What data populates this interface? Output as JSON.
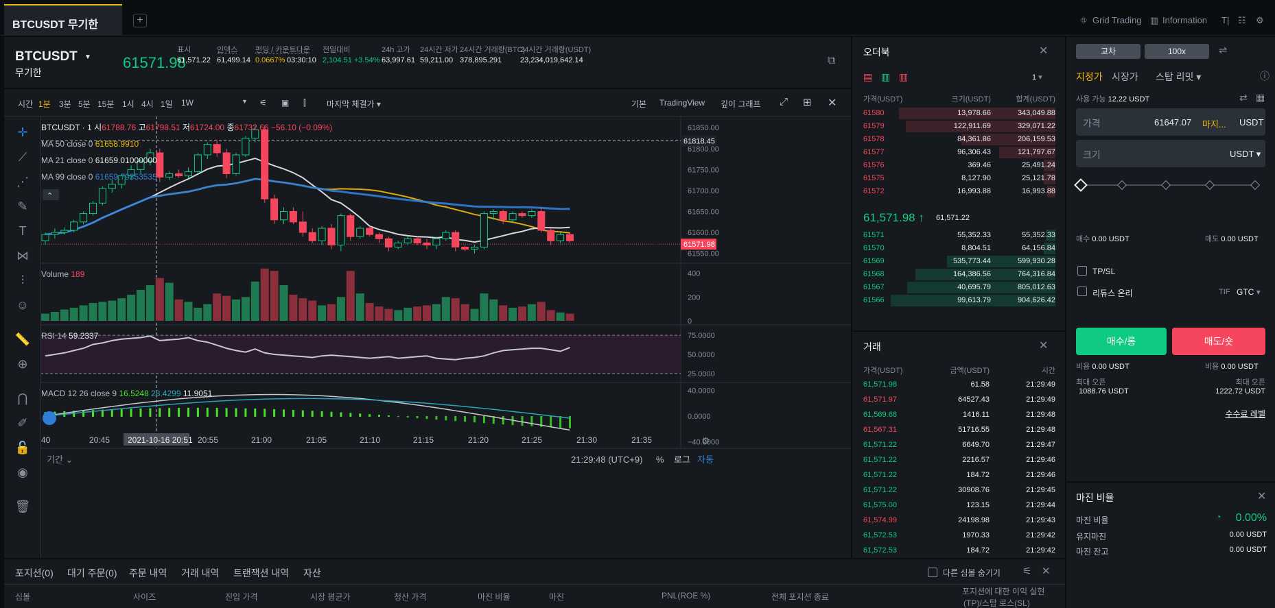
{
  "tab": {
    "title": "BTCUSDT 무기한",
    "add": "+"
  },
  "top_tools": {
    "grid": "Grid Trading",
    "info": "Information"
  },
  "symbol": {
    "name": "BTCUSDT",
    "sub": "무기한",
    "price": "61571.98",
    "stats": [
      {
        "label": "표시",
        "value": "61,571.22",
        "color": "#eaecef"
      },
      {
        "label": "인덱스",
        "value": "61,499.14",
        "color": "#eaecef"
      },
      {
        "label": "펀딩 / 카운트다운",
        "value": "0.0667%",
        "value2": "03:30:10",
        "color": "#f0b90b"
      },
      {
        "label": "전일대비",
        "value": "2,104.51 +3.54%",
        "color": "#0ecb81"
      },
      {
        "label": "24h 고가",
        "value": "63,997.61",
        "color": "#eaecef"
      },
      {
        "label": "24시간 저가",
        "value": "59,211.00",
        "color": "#eaecef"
      },
      {
        "label": "24시간 거래량(BTC)",
        "value": "378,895.291",
        "color": "#eaecef"
      },
      {
        "label": "24시간 거래량(USDT)",
        "value": "23,234,019,642.14",
        "color": "#eaecef"
      }
    ]
  },
  "intervals": {
    "label": "시간",
    "items": [
      "1분",
      "3분",
      "5분",
      "15분",
      "1시",
      "4시",
      "1일",
      "1W"
    ],
    "active": "1분",
    "price_type": "마지막 체결가",
    "views": [
      "기본",
      "TradingView",
      "깊이 그래프"
    ]
  },
  "chart_data": {
    "type": "candlestick",
    "title": "BTCUSDT · 1",
    "ohlc": {
      "o_label": "시",
      "o": "61788.76",
      "h_label": "고",
      "h": "61798.51",
      "l_label": "저",
      "l": "61724.00",
      "c_label": "종",
      "c": "61732.66",
      "chg": "−56.10 (−0.09%)"
    },
    "ma": [
      {
        "label": "MA 50 close 0",
        "value": "61658.9910",
        "color": "#f0b90b"
      },
      {
        "label": "MA 21 close 0",
        "value": "61659.01000000",
        "color": "#eaecef"
      },
      {
        "label": "MA 99 close 0",
        "value": "61659.79353535",
        "color": "#2f7ed8"
      }
    ],
    "price_axis": [
      "61850.00",
      "61800.00",
      "61750.00",
      "61700.00",
      "61650.00",
      "61600.00",
      "61550.00"
    ],
    "crosshair_price": "61818.45",
    "last_price": "61571.98",
    "ylim": [
      61520,
      61870
    ],
    "candles": [
      [
        61580,
        61600,
        61570,
        61595
      ],
      [
        61595,
        61610,
        61585,
        61600
      ],
      [
        61600,
        61612,
        61595,
        61605
      ],
      [
        61605,
        61630,
        61600,
        61625
      ],
      [
        61625,
        61650,
        61620,
        61645
      ],
      [
        61645,
        61675,
        61640,
        61670
      ],
      [
        61670,
        61710,
        61665,
        61705
      ],
      [
        61705,
        61725,
        61695,
        61715
      ],
      [
        61715,
        61740,
        61705,
        61735
      ],
      [
        61735,
        61760,
        61725,
        61750
      ],
      [
        61750,
        61775,
        61740,
        61770
      ],
      [
        61770,
        61800,
        61760,
        61790
      ],
      [
        61790,
        61800,
        61720,
        61732
      ],
      [
        61732,
        61745,
        61725,
        61740
      ],
      [
        61740,
        61750,
        61730,
        61735
      ],
      [
        61735,
        61755,
        61730,
        61745
      ],
      [
        61745,
        61790,
        61740,
        61785
      ],
      [
        61785,
        61815,
        61775,
        61810
      ],
      [
        61810,
        61820,
        61780,
        61790
      ],
      [
        61790,
        61800,
        61730,
        61740
      ],
      [
        61740,
        61790,
        61735,
        61785
      ],
      [
        61785,
        61830,
        61780,
        61825
      ],
      [
        61825,
        61855,
        61815,
        61845
      ],
      [
        61845,
        61855,
        61670,
        61680
      ],
      [
        61680,
        61690,
        61620,
        61630
      ],
      [
        61630,
        61660,
        61620,
        61650
      ],
      [
        61650,
        61660,
        61620,
        61625
      ],
      [
        61625,
        61650,
        61590,
        61600
      ],
      [
        61600,
        61610,
        61575,
        61580
      ],
      [
        61580,
        61615,
        61570,
        61610
      ],
      [
        61610,
        61620,
        61560,
        61570
      ],
      [
        61570,
        61645,
        61555,
        61640
      ],
      [
        61640,
        61645,
        61580,
        61590
      ],
      [
        61590,
        61615,
        61585,
        61610
      ],
      [
        61610,
        61615,
        61590,
        61595
      ],
      [
        61595,
        61600,
        61575,
        61585
      ],
      [
        61585,
        61590,
        61555,
        61565
      ],
      [
        61565,
        61580,
        61560,
        61575
      ],
      [
        61575,
        61590,
        61570,
        61585
      ],
      [
        61585,
        61590,
        61570,
        61575
      ],
      [
        61575,
        61585,
        61560,
        61570
      ],
      [
        61570,
        61590,
        61560,
        61585
      ],
      [
        61585,
        61605,
        61580,
        61600
      ],
      [
        61600,
        61605,
        61555,
        61565
      ],
      [
        61565,
        61570,
        61555,
        61560
      ],
      [
        61560,
        61570,
        61550,
        61565
      ],
      [
        61565,
        61650,
        61560,
        61645
      ],
      [
        61645,
        61655,
        61630,
        61650
      ],
      [
        61650,
        61655,
        61620,
        61630
      ],
      [
        61630,
        61650,
        61625,
        61645
      ],
      [
        61645,
        61650,
        61635,
        61640
      ],
      [
        61640,
        61655,
        61635,
        61650
      ],
      [
        61650,
        61660,
        61600,
        61605
      ],
      [
        61605,
        61610,
        61570,
        61580
      ],
      [
        61580,
        61600,
        61575,
        61595
      ],
      [
        61595,
        61600,
        61575,
        61580
      ]
    ],
    "volume": {
      "label": "Volume",
      "value": "189",
      "axis": [
        "400",
        "200",
        "0"
      ],
      "values": [
        60,
        75,
        95,
        110,
        130,
        150,
        160,
        170,
        190,
        220,
        260,
        300,
        360,
        320,
        180,
        160,
        110,
        140,
        230,
        210,
        180,
        200,
        330,
        440,
        420,
        300,
        220,
        190,
        170,
        130,
        140,
        200,
        420,
        230,
        150,
        120,
        100,
        90,
        110,
        120,
        130,
        140,
        200,
        190,
        140,
        100,
        230,
        180,
        130,
        110,
        120,
        140,
        160,
        90,
        70,
        60
      ]
    },
    "rsi": {
      "label": "RSI 14",
      "value": "59.2337",
      "axis": [
        "75.0000",
        "50.0000",
        "25.0000"
      ],
      "values": [
        48,
        50,
        52,
        55,
        58,
        63,
        65,
        68,
        70,
        71,
        72,
        74,
        68,
        69,
        70,
        72,
        68,
        66,
        62,
        58,
        55,
        53,
        57,
        52,
        50,
        49,
        48,
        47,
        46,
        48,
        49,
        48,
        47,
        46,
        45,
        46,
        47,
        45,
        46,
        47,
        48,
        45,
        44,
        43,
        45,
        46,
        48,
        52,
        55,
        56,
        57,
        58,
        58,
        56,
        54,
        59
      ]
    },
    "macd": {
      "label": "MACD 12 26 close 9",
      "v1": "16.5248",
      "v2": "28.4299",
      "v3": "11.9051",
      "axis": [
        "40.0000",
        "0.0000",
        "−40.0000"
      ]
    },
    "time_axis": [
      "40",
      "20:45",
      "20:55",
      "21:00",
      "21:05",
      "21:10",
      "21:15",
      "21:20",
      "21:25",
      "21:30",
      "21:35"
    ],
    "time_cursor": "2021-10-16   20:51",
    "footer_left": "기간",
    "footer_time": "21:29:48 (UTC+9)",
    "footer_opts": [
      "%",
      "로그",
      "자동"
    ]
  },
  "orderbook": {
    "title": "오더북",
    "precision": "1",
    "headers": [
      "가격(USDT)",
      "크기(USDT)",
      "합계(USDT)"
    ],
    "asks": [
      {
        "p": "61580",
        "s": "13,978.66",
        "t": "343,049.88",
        "d": 0.95
      },
      {
        "p": "61579",
        "s": "122,911.69",
        "t": "329,071.22",
        "d": 0.91
      },
      {
        "p": "61578",
        "s": "84,361.86",
        "t": "206,159.53",
        "d": 0.57
      },
      {
        "p": "61577",
        "s": "96,306.43",
        "t": "121,797.67",
        "d": 0.34
      },
      {
        "p": "61576",
        "s": "369.46",
        "t": "25,491.24",
        "d": 0.07
      },
      {
        "p": "61575",
        "s": "8,127.90",
        "t": "25,121.78",
        "d": 0.07
      },
      {
        "p": "61572",
        "s": "16,993.88",
        "t": "16,993.88",
        "d": 0.05
      }
    ],
    "mid_price": "61,571.98",
    "mid_arrow": "↑",
    "mid_mark": "61,571.22",
    "bids": [
      {
        "p": "61571",
        "s": "55,352.33",
        "t": "55,352.33",
        "d": 0.06
      },
      {
        "p": "61570",
        "s": "8,804.51",
        "t": "64,156.84",
        "d": 0.07
      },
      {
        "p": "61569",
        "s": "535,773.44",
        "t": "599,930.28",
        "d": 0.66
      },
      {
        "p": "61568",
        "s": "164,386.56",
        "t": "764,316.84",
        "d": 0.85
      },
      {
        "p": "61567",
        "s": "40,695.79",
        "t": "805,012.63",
        "d": 0.9
      },
      {
        "p": "61566",
        "s": "99,613.79",
        "t": "904,626.42",
        "d": 1.0
      }
    ]
  },
  "trades": {
    "title": "거래",
    "headers": [
      "가격(USDT)",
      "금액(USDT)",
      "시간"
    ],
    "rows": [
      {
        "p": "61,571.98",
        "a": "61.58",
        "t": "21:29:49",
        "side": "buy"
      },
      {
        "p": "61,571.97",
        "a": "64527.43",
        "t": "21:29:49",
        "side": "sell"
      },
      {
        "p": "61,569.68",
        "a": "1416.11",
        "t": "21:29:48",
        "side": "buy"
      },
      {
        "p": "61,567.31",
        "a": "51716.55",
        "t": "21:29:48",
        "side": "sell"
      },
      {
        "p": "61,571.22",
        "a": "6649.70",
        "t": "21:29:47",
        "side": "buy"
      },
      {
        "p": "61,571.22",
        "a": "2216.57",
        "t": "21:29:46",
        "side": "buy"
      },
      {
        "p": "61,571.22",
        "a": "184.72",
        "t": "21:29:46",
        "side": "buy"
      },
      {
        "p": "61,571.22",
        "a": "30908.76",
        "t": "21:29:45",
        "side": "buy"
      },
      {
        "p": "61,575.00",
        "a": "123.15",
        "t": "21:29:44",
        "side": "buy"
      },
      {
        "p": "61,574.99",
        "a": "24198.98",
        "t": "21:29:43",
        "side": "sell"
      },
      {
        "p": "61,572.53",
        "a": "1970.33",
        "t": "21:29:42",
        "side": "buy"
      },
      {
        "p": "61,572.53",
        "a": "184.72",
        "t": "21:29:42",
        "side": "buy"
      }
    ]
  },
  "order": {
    "margin_mode": "교차",
    "leverage": "100x",
    "types": [
      "지정가",
      "시장가",
      "스탑 리밋"
    ],
    "avail_label": "사용 가능",
    "avail": "12.22 USDT",
    "price_label": "가격",
    "price_value": "61647.07",
    "price_tag": "마지...",
    "price_unit": "USDT",
    "size_label": "크기",
    "size_unit": "USDT",
    "buy_label": "매수",
    "buy_val": "0.00 USDT",
    "sell_label": "매도",
    "sell_val": "0.00 USDT",
    "tpsl": "TP/SL",
    "reduce": "리듀스 온리",
    "tif_label": "TIF",
    "tif": "GTC",
    "buy_btn": "매수/롱",
    "sell_btn": "매도/숏",
    "cost_label": "비용",
    "cost_buy": "0.00 USDT",
    "cost_sell": "0.00 USDT",
    "max_label": "최대 오픈",
    "max_buy": "1088.76 USDT",
    "max_sell": "1222.72 USDT",
    "fee_link": "수수료 레벨"
  },
  "margin": {
    "title": "마진 비율",
    "rows": [
      {
        "label": "마진 비율",
        "value": "0.00%"
      },
      {
        "label": "유지마진",
        "value": "0.00 USDT"
      },
      {
        "label": "마진 잔고",
        "value": "0.00 USDT"
      }
    ]
  },
  "bottom": {
    "tabs": [
      "포지션(0)",
      "대기 주문(0)",
      "주문 내역",
      "거래 내역",
      "트랜잭션 내역",
      "자산"
    ],
    "hide_other": "다른 심볼 숨기기",
    "headers": [
      "심볼",
      "사이즈",
      "진입 가격",
      "시장 평균가",
      "청산 가격",
      "마진 비율",
      "마진",
      "PNL(ROE %)",
      "전체 포지션 종료",
      "포지션에 대한 이익 실현",
      "(TP)/스탑 로스(SL)"
    ]
  }
}
